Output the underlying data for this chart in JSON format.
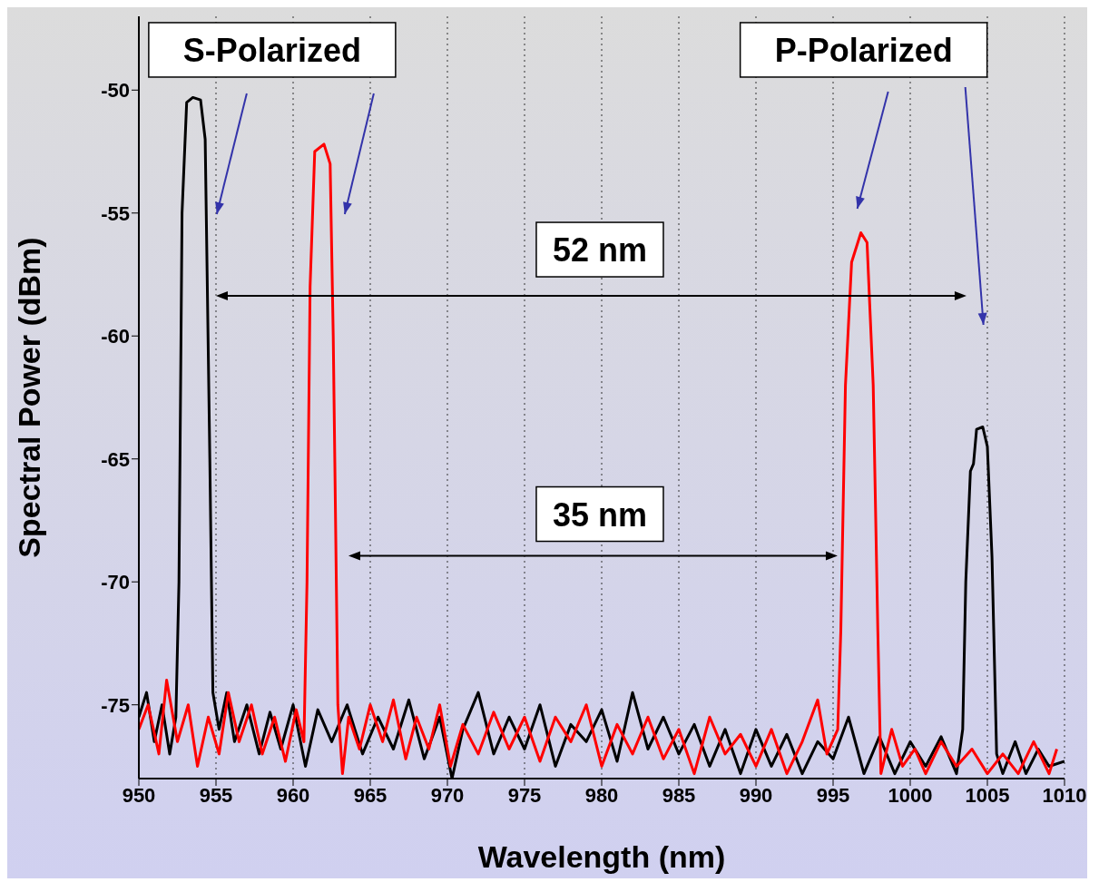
{
  "chart_data": {
    "type": "line",
    "xlabel": "Wavelength (nm)",
    "ylabel": "Spectral Power (dBm)",
    "xlim": [
      950,
      1010
    ],
    "xticks": [
      950,
      955,
      960,
      965,
      970,
      975,
      980,
      985,
      990,
      995,
      1000,
      1005,
      1010
    ],
    "ylim": [
      -78,
      -47
    ],
    "yticks": [
      -50,
      -55,
      -60,
      -65,
      -70,
      -75
    ],
    "grid": "x",
    "marker": "none",
    "line_style": "solid",
    "annotations": [
      "S-Polarized",
      "P-Polarized",
      "52 nm",
      "35 nm"
    ],
    "series": [
      {
        "color": "#000000",
        "x": [
          950,
          950.5,
          951,
          951.5,
          952,
          952.4,
          952.6,
          952.8,
          953.1,
          953.5,
          954,
          954.3,
          954.6,
          954.8,
          955.2,
          955.7,
          956.2,
          957,
          957.8,
          958.5,
          959.2,
          960,
          960.8,
          961.6,
          962.5,
          963.5,
          964.5,
          965.5,
          966.5,
          967.5,
          968.5,
          969.5,
          970.3,
          971,
          972,
          973,
          974,
          975,
          976,
          977,
          978,
          979,
          980,
          981,
          982,
          983,
          984,
          985,
          986,
          987,
          988,
          989,
          990,
          991,
          992,
          993,
          994,
          995,
          996,
          997,
          998,
          999,
          1000,
          1001,
          1002,
          1003,
          1003.4,
          1003.6,
          1003.9,
          1004.1,
          1004.3,
          1004.7,
          1005,
          1005.3,
          1005.6,
          1006,
          1006.8,
          1007.5,
          1008.3,
          1009,
          1010
        ],
        "values": [
          -75.5,
          -74.5,
          -76.5,
          -75,
          -77,
          -75.5,
          -70,
          -55,
          -50.5,
          -50.3,
          -50.4,
          -52,
          -65,
          -74.5,
          -76,
          -74.5,
          -76.5,
          -75,
          -77,
          -75.3,
          -76.8,
          -75,
          -77.5,
          -75.2,
          -76.5,
          -75,
          -77,
          -75.5,
          -76.8,
          -74.8,
          -77.2,
          -75.5,
          -78,
          -76,
          -74.5,
          -77,
          -75.5,
          -76.8,
          -75,
          -77.5,
          -75.8,
          -76.5,
          -75.2,
          -77.3,
          -74.5,
          -76.8,
          -75.5,
          -77,
          -75.8,
          -77.5,
          -76,
          -77.8,
          -76,
          -77.5,
          -76.2,
          -77.8,
          -76.5,
          -77.2,
          -75.5,
          -77.8,
          -76.3,
          -77.8,
          -76.5,
          -77.5,
          -76.3,
          -77.8,
          -76,
          -70,
          -65.5,
          -65.2,
          -63.8,
          -63.7,
          -64.5,
          -69,
          -77,
          -77.8,
          -76.5,
          -77.8,
          -76.8,
          -77.5,
          -77.3
        ]
      },
      {
        "color": "#ff0000",
        "x": [
          950,
          950.6,
          951.3,
          951.8,
          952.5,
          953.2,
          953.8,
          954.5,
          955.2,
          955.8,
          956.5,
          957.3,
          958,
          958.8,
          959.5,
          960.2,
          960.7,
          960.9,
          961.1,
          961.4,
          962,
          962.4,
          962.6,
          962.9,
          963.2,
          963.6,
          964.3,
          965,
          965.8,
          966.5,
          967.3,
          968,
          968.8,
          969.5,
          970.2,
          971,
          972,
          973,
          974,
          975,
          976,
          977,
          978,
          979,
          980,
          981,
          982,
          983,
          984,
          985,
          986,
          987,
          988,
          989,
          990,
          991,
          992,
          993,
          994,
          994.6,
          995.3,
          995.5,
          995.8,
          996.2,
          996.8,
          997.2,
          997.6,
          997.9,
          998.1,
          998.8,
          999.5,
          1000.3,
          1001,
          1002,
          1003,
          1004,
          1005,
          1006,
          1007,
          1008,
          1009,
          1009.5
        ],
        "values": [
          -76,
          -75,
          -77,
          -74,
          -76.5,
          -75,
          -77.5,
          -75.5,
          -77,
          -74.5,
          -76.5,
          -75,
          -77,
          -75.5,
          -77.3,
          -75.2,
          -76.5,
          -70,
          -58,
          -52.5,
          -52.2,
          -53,
          -60,
          -75,
          -77.8,
          -75.5,
          -76.8,
          -75,
          -76.5,
          -74.8,
          -77.2,
          -75.5,
          -76.8,
          -75,
          -77.5,
          -75.8,
          -77,
          -75.3,
          -76.8,
          -75.5,
          -77.3,
          -75.5,
          -76.5,
          -75,
          -77.5,
          -75.8,
          -77,
          -75.5,
          -77.2,
          -76,
          -77.8,
          -75.5,
          -77,
          -76.2,
          -77.5,
          -76,
          -77.8,
          -76.5,
          -74.8,
          -77,
          -76,
          -72,
          -62,
          -57,
          -55.8,
          -56.2,
          -62,
          -72,
          -77.8,
          -76,
          -77.5,
          -76.8,
          -77.8,
          -76.5,
          -77.5,
          -76.8,
          -77.8,
          -77,
          -77.8,
          -76.5,
          -77.8,
          -76.8
        ]
      }
    ]
  }
}
